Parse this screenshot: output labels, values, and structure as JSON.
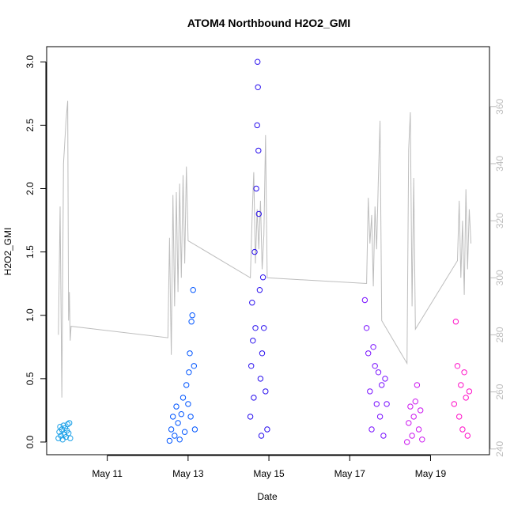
{
  "chart_data": {
    "type": "scatter",
    "title": "ATOM4 Northbound H2O2_GMI",
    "xlabel": "Date",
    "ylabel": "H2O2_GMI",
    "x_axis": {
      "type": "date",
      "range": [
        "2018-05-09T12:00",
        "2018-05-20T11:00"
      ],
      "ticks": [
        {
          "date": "2018-05-11T00:00",
          "label": "May 11"
        },
        {
          "date": "2018-05-13T00:00",
          "label": "May 13"
        },
        {
          "date": "2018-05-15T00:00",
          "label": "May 15"
        },
        {
          "date": "2018-05-17T00:00",
          "label": "May 17"
        },
        {
          "date": "2018-05-19T00:00",
          "label": "May 19"
        }
      ]
    },
    "y_axis": {
      "range": [
        -0.1,
        3.12
      ],
      "ticks": [
        "0.0",
        "0.5",
        "1.0",
        "1.5",
        "2.0",
        "2.5",
        "3.0"
      ]
    },
    "y2_axis": {
      "range": [
        238,
        381
      ],
      "ticks": [
        "240",
        "260",
        "280",
        "300",
        "320",
        "340",
        "360"
      ],
      "color": "#bdbdbd"
    },
    "grid": false,
    "series": [
      {
        "color": "#1aa0e8",
        "marker": "open-circle",
        "points": [
          [
            "2018-05-09T19:00",
            0.03
          ],
          [
            "2018-05-09T19:30",
            0.08
          ],
          [
            "2018-05-09T20:00",
            0.12
          ],
          [
            "2018-05-09T20:30",
            0.05
          ],
          [
            "2018-05-09T21:00",
            0.1
          ],
          [
            "2018-05-09T21:30",
            0.02
          ],
          [
            "2018-05-09T22:00",
            0.13
          ],
          [
            "2018-05-09T22:30",
            0.06
          ],
          [
            "2018-05-09T23:00",
            0.11
          ],
          [
            "2018-05-09T23:30",
            0.04
          ],
          [
            "2018-05-10T00:00",
            0.09
          ],
          [
            "2018-05-10T00:30",
            0.14
          ],
          [
            "2018-05-10T01:00",
            0.07
          ],
          [
            "2018-05-10T01:30",
            0.15
          ],
          [
            "2018-05-10T02:00",
            0.03
          ]
        ]
      },
      {
        "color": "#0055ff",
        "marker": "open-circle",
        "points": [
          [
            "2018-05-12T13:00",
            0.01
          ],
          [
            "2018-05-12T14:00",
            0.1
          ],
          [
            "2018-05-12T15:00",
            0.2
          ],
          [
            "2018-05-12T16:00",
            0.05
          ],
          [
            "2018-05-12T17:00",
            0.28
          ],
          [
            "2018-05-12T18:00",
            0.15
          ],
          [
            "2018-05-12T19:00",
            0.02
          ],
          [
            "2018-05-12T20:00",
            0.22
          ],
          [
            "2018-05-12T21:00",
            0.35
          ],
          [
            "2018-05-12T22:00",
            0.08
          ],
          [
            "2018-05-12T23:00",
            0.45
          ],
          [
            "2018-05-13T00:00",
            0.3
          ],
          [
            "2018-05-13T00:30",
            0.55
          ],
          [
            "2018-05-13T01:00",
            0.7
          ],
          [
            "2018-05-13T01:30",
            0.2
          ],
          [
            "2018-05-13T02:00",
            0.95
          ],
          [
            "2018-05-13T02:30",
            1.0
          ],
          [
            "2018-05-13T03:00",
            1.2
          ],
          [
            "2018-05-13T03:30",
            0.6
          ],
          [
            "2018-05-13T04:00",
            0.1
          ]
        ]
      },
      {
        "color": "#2a10ee",
        "marker": "open-circle",
        "points": [
          [
            "2018-05-14T13:00",
            0.2
          ],
          [
            "2018-05-14T13:30",
            0.6
          ],
          [
            "2018-05-14T14:00",
            1.1
          ],
          [
            "2018-05-14T14:30",
            0.8
          ],
          [
            "2018-05-14T15:00",
            0.35
          ],
          [
            "2018-05-14T15:30",
            1.5
          ],
          [
            "2018-05-14T16:00",
            0.9
          ],
          [
            "2018-05-14T16:30",
            2.0
          ],
          [
            "2018-05-14T17:00",
            2.5
          ],
          [
            "2018-05-14T17:15",
            3.0
          ],
          [
            "2018-05-14T17:30",
            2.8
          ],
          [
            "2018-05-14T17:45",
            2.3
          ],
          [
            "2018-05-14T18:00",
            1.8
          ],
          [
            "2018-05-14T18:30",
            1.2
          ],
          [
            "2018-05-14T19:00",
            0.5
          ],
          [
            "2018-05-14T19:30",
            0.05
          ],
          [
            "2018-05-14T20:00",
            0.7
          ],
          [
            "2018-05-14T20:30",
            1.3
          ],
          [
            "2018-05-14T21:00",
            0.9
          ],
          [
            "2018-05-14T22:00",
            0.4
          ],
          [
            "2018-05-14T23:00",
            0.1
          ]
        ]
      },
      {
        "color": "#7a12ff",
        "marker": "open-circle",
        "points": [
          [
            "2018-05-17T09:00",
            1.12
          ],
          [
            "2018-05-17T10:00",
            0.9
          ],
          [
            "2018-05-17T11:00",
            0.7
          ],
          [
            "2018-05-17T12:00",
            0.4
          ],
          [
            "2018-05-17T13:00",
            0.1
          ],
          [
            "2018-05-17T14:00",
            0.75
          ],
          [
            "2018-05-17T15:00",
            0.6
          ],
          [
            "2018-05-17T16:00",
            0.3
          ],
          [
            "2018-05-17T17:00",
            0.55
          ],
          [
            "2018-05-17T18:00",
            0.2
          ],
          [
            "2018-05-17T19:00",
            0.45
          ],
          [
            "2018-05-17T20:00",
            0.05
          ],
          [
            "2018-05-17T21:00",
            0.5
          ],
          [
            "2018-05-17T22:00",
            0.3
          ]
        ]
      },
      {
        "color": "#cc18f0",
        "marker": "open-circle",
        "points": [
          [
            "2018-05-18T10:00",
            0.0
          ],
          [
            "2018-05-18T11:00",
            0.15
          ],
          [
            "2018-05-18T12:00",
            0.28
          ],
          [
            "2018-05-18T13:00",
            0.05
          ],
          [
            "2018-05-18T14:00",
            0.2
          ],
          [
            "2018-05-18T15:00",
            0.32
          ],
          [
            "2018-05-18T16:00",
            0.45
          ],
          [
            "2018-05-18T17:00",
            0.1
          ],
          [
            "2018-05-18T18:00",
            0.25
          ],
          [
            "2018-05-18T19:00",
            0.02
          ]
        ]
      },
      {
        "color": "#ff10c8",
        "marker": "open-circle",
        "points": [
          [
            "2018-05-19T14:00",
            0.3
          ],
          [
            "2018-05-19T15:00",
            0.95
          ],
          [
            "2018-05-19T16:00",
            0.6
          ],
          [
            "2018-05-19T17:00",
            0.2
          ],
          [
            "2018-05-19T18:00",
            0.45
          ],
          [
            "2018-05-19T19:00",
            0.1
          ],
          [
            "2018-05-19T20:00",
            0.55
          ],
          [
            "2018-05-19T21:00",
            0.35
          ],
          [
            "2018-05-19T22:00",
            0.05
          ],
          [
            "2018-05-19T23:00",
            0.4
          ]
        ]
      }
    ],
    "secondary_line": {
      "color": "#bdbdbd",
      "axis": "y2",
      "points": [
        [
          "2018-05-09T19:00",
          280
        ],
        [
          "2018-05-09T20:00",
          325
        ],
        [
          "2018-05-09T21:00",
          258
        ],
        [
          "2018-05-09T22:00",
          340
        ],
        [
          "2018-05-09T23:30",
          355
        ],
        [
          "2018-05-10T00:30",
          362
        ],
        [
          "2018-05-10T01:00",
          285
        ],
        [
          "2018-05-10T01:30",
          295
        ],
        [
          "2018-05-10T02:00",
          278
        ],
        [
          "2018-05-10T02:30",
          283
        ],
        [
          "2018-05-12T12:00",
          279
        ],
        [
          "2018-05-12T13:00",
          314
        ],
        [
          "2018-05-12T14:00",
          273
        ],
        [
          "2018-05-12T15:00",
          329
        ],
        [
          "2018-05-12T16:00",
          290
        ],
        [
          "2018-05-12T17:00",
          330
        ],
        [
          "2018-05-12T18:00",
          295
        ],
        [
          "2018-05-12T19:00",
          333
        ],
        [
          "2018-05-12T20:00",
          300
        ],
        [
          "2018-05-12T21:00",
          336
        ],
        [
          "2018-05-12T22:00",
          305
        ],
        [
          "2018-05-12T23:00",
          339
        ],
        [
          "2018-05-13T00:00",
          313
        ],
        [
          "2018-05-14T13:00",
          300
        ],
        [
          "2018-05-14T14:00",
          321
        ],
        [
          "2018-05-14T15:00",
          337
        ],
        [
          "2018-05-14T16:00",
          305
        ],
        [
          "2018-05-14T17:00",
          324
        ],
        [
          "2018-05-14T18:00",
          310
        ],
        [
          "2018-05-14T19:00",
          327
        ],
        [
          "2018-05-14T20:00",
          303
        ],
        [
          "2018-05-14T21:00",
          315
        ],
        [
          "2018-05-14T22:00",
          350
        ],
        [
          "2018-05-14T23:00",
          300
        ],
        [
          "2018-05-17T10:00",
          298
        ],
        [
          "2018-05-17T11:00",
          328
        ],
        [
          "2018-05-17T12:00",
          312
        ],
        [
          "2018-05-17T13:00",
          322
        ],
        [
          "2018-05-17T14:00",
          297
        ],
        [
          "2018-05-17T15:00",
          325
        ],
        [
          "2018-05-17T16:00",
          310
        ],
        [
          "2018-05-17T17:00",
          335
        ],
        [
          "2018-05-17T18:00",
          355
        ],
        [
          "2018-05-17T19:00",
          285
        ],
        [
          "2018-05-18T10:00",
          270
        ],
        [
          "2018-05-18T11:00",
          345
        ],
        [
          "2018-05-18T12:00",
          358
        ],
        [
          "2018-05-18T13:00",
          290
        ],
        [
          "2018-05-18T14:00",
          335
        ],
        [
          "2018-05-18T15:00",
          282
        ],
        [
          "2018-05-19T16:00",
          306
        ],
        [
          "2018-05-19T17:00",
          327
        ],
        [
          "2018-05-19T18:00",
          300
        ],
        [
          "2018-05-19T19:00",
          320
        ],
        [
          "2018-05-19T20:00",
          294
        ],
        [
          "2018-05-19T21:00",
          331
        ],
        [
          "2018-05-19T22:00",
          303
        ],
        [
          "2018-05-19T23:00",
          324
        ],
        [
          "2018-05-20T00:00",
          312
        ]
      ]
    }
  }
}
